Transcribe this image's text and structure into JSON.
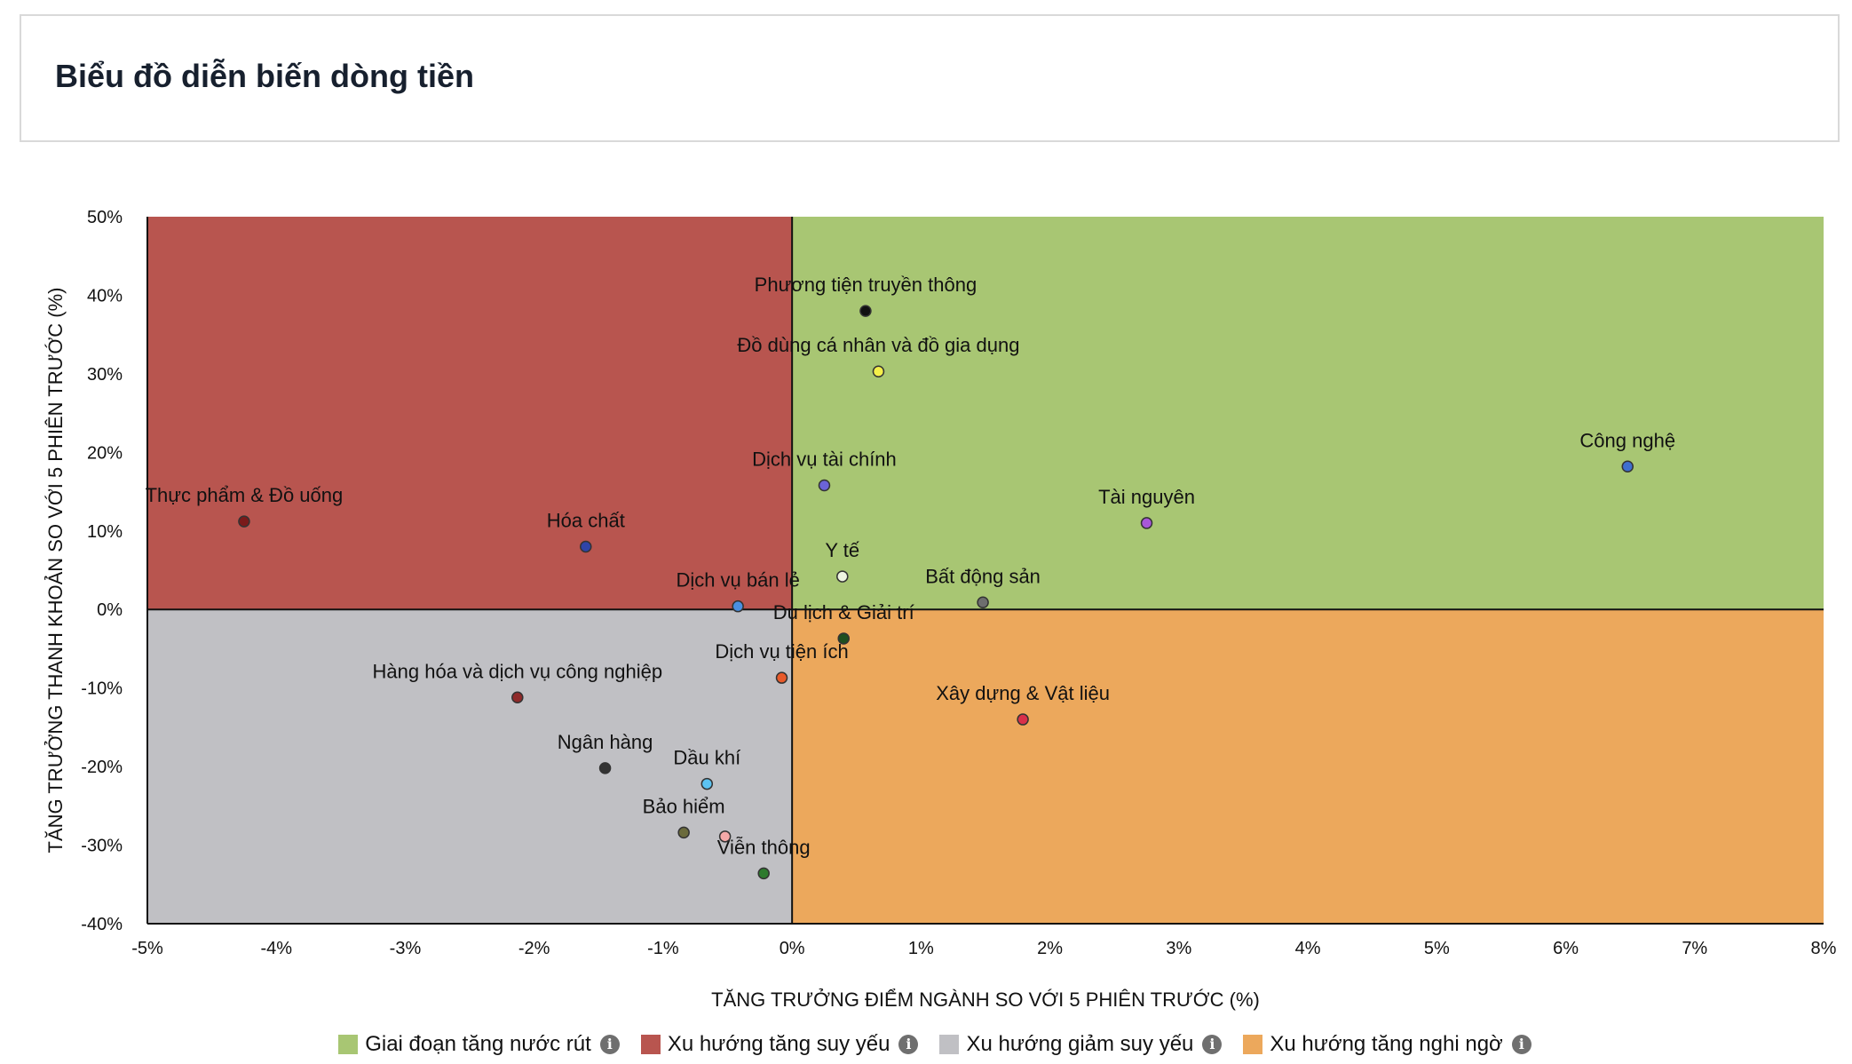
{
  "header": {
    "title": "Biểu đồ diễn biến dòng tiền"
  },
  "chart_data": {
    "type": "scatter",
    "title": "",
    "xlabel": "TĂNG TRƯỞNG ĐIỂM NGÀNH SO VỚI 5 PHIÊN TRƯỚC (%)",
    "ylabel": "TĂNG TRƯỞNG THANH KHOẢN SO VỚI 5 PHIÊN TRƯỚC (%)",
    "xlim": [
      -5,
      8
    ],
    "ylim": [
      -40,
      50
    ],
    "x_ticks": [
      -5,
      -4,
      -3,
      -2,
      -1,
      0,
      1,
      2,
      3,
      4,
      5,
      6,
      7,
      8
    ],
    "y_ticks": [
      -40,
      -30,
      -20,
      -10,
      0,
      10,
      20,
      30,
      40,
      50
    ],
    "tick_suffix": "%",
    "grid": false,
    "quadrants": [
      {
        "name": "Giai đoạn tăng nước rút",
        "color": "#a8c673",
        "x_sign": "positive",
        "y_sign": "positive"
      },
      {
        "name": "Xu hướng tăng suy yếu",
        "color": "#b8554f",
        "x_sign": "negative",
        "y_sign": "positive"
      },
      {
        "name": "Xu hướng giảm suy yếu",
        "color": "#c0c0c4",
        "x_sign": "negative",
        "y_sign": "negative"
      },
      {
        "name": "Xu hướng tăng nghi ngờ",
        "color": "#eca85c",
        "x_sign": "positive",
        "y_sign": "negative"
      }
    ],
    "legend_position": "bottom",
    "points": [
      {
        "name": "Phương tiện truyền thông",
        "x": 0.57,
        "y": 38.0,
        "color": "#111111"
      },
      {
        "name": "Đồ dùng cá nhân và đồ gia dụng",
        "x": 0.67,
        "y": 30.3,
        "color": "#f4ef4a"
      },
      {
        "name": "Công nghệ",
        "x": 6.48,
        "y": 18.2,
        "color": "#3f6fcf"
      },
      {
        "name": "Dịch vụ tài chính",
        "x": 0.25,
        "y": 15.8,
        "color": "#6b63d8"
      },
      {
        "name": "Thực phẩm & Đồ uống",
        "x": -4.25,
        "y": 11.2,
        "color": "#7a1a1a"
      },
      {
        "name": "Tài nguyên",
        "x": 2.75,
        "y": 11.0,
        "color": "#a857d8"
      },
      {
        "name": "Hóa chất",
        "x": -1.6,
        "y": 8.0,
        "color": "#2f44a8"
      },
      {
        "name": "Y tế",
        "x": 0.39,
        "y": 4.2,
        "color": "#eef5e0"
      },
      {
        "name": "Bất động sản",
        "x": 1.48,
        "y": 0.9,
        "color": "#6e6e6e"
      },
      {
        "name": "Dịch vụ bán lẻ",
        "x": -0.42,
        "y": 0.4,
        "color": "#4a90e2"
      },
      {
        "name": "Du lịch & Giải trí",
        "x": 0.4,
        "y": -3.7,
        "color": "#1f4f1f"
      },
      {
        "name": "Dịch vụ tiện ích",
        "x": -0.08,
        "y": -8.7,
        "color": "#e85a2a"
      },
      {
        "name": "Hàng hóa và dịch vụ công nghiệp",
        "x": -2.13,
        "y": -11.2,
        "color": "#8f2a2a"
      },
      {
        "name": "Xây dựng & Vật liệu",
        "x": 1.79,
        "y": -14.0,
        "color": "#d8304a"
      },
      {
        "name": "Ngân hàng",
        "x": -1.45,
        "y": -20.2,
        "color": "#333333"
      },
      {
        "name": "Dầu khí",
        "x": -0.66,
        "y": -22.2,
        "color": "#5cc3f2"
      },
      {
        "name": "Bảo hiểm",
        "x": -0.84,
        "y": -28.4,
        "color": "#6b6b3c"
      },
      {
        "name": "",
        "x": -0.52,
        "y": -28.9,
        "color": "#f4a9a8"
      },
      {
        "name": "Viễn thông",
        "x": -0.22,
        "y": -33.6,
        "color": "#2d7a2d"
      }
    ]
  },
  "legend": {
    "items": [
      {
        "label": "Giai đoạn tăng nước rút",
        "color": "#a8c673",
        "info_icon": "info-icon"
      },
      {
        "label": "Xu hướng tăng suy yếu",
        "color": "#b8554f",
        "info_icon": "info-icon"
      },
      {
        "label": "Xu hướng giảm suy yếu",
        "color": "#c0c0c4",
        "info_icon": "info-icon"
      },
      {
        "label": "Xu hướng tăng nghi ngờ",
        "color": "#eca85c",
        "info_icon": "info-icon"
      }
    ]
  }
}
